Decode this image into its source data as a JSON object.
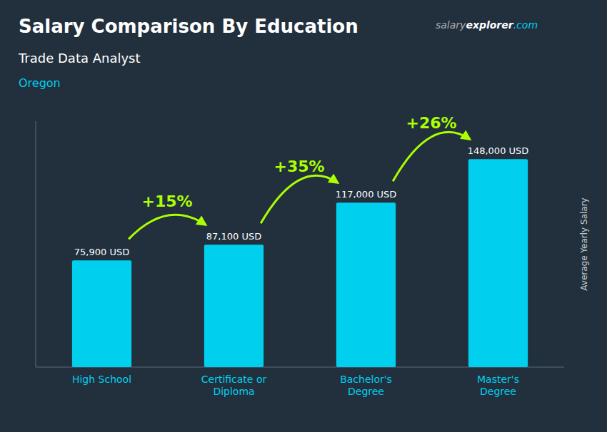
{
  "chart_data": {
    "type": "bar",
    "title": "Salary Comparison By Education",
    "subtitle": "Trade Data Analyst",
    "location": "Oregon",
    "brand": [
      "salary",
      "explorer",
      ".com"
    ],
    "ylabel": "Average Yearly Salary",
    "categories": [
      "High School",
      "Certificate or\nDiploma",
      "Bachelor's\nDegree",
      "Master's\nDegree"
    ],
    "values": [
      75900,
      87100,
      117000,
      148000
    ],
    "value_labels": [
      "75,900 USD",
      "87,100 USD",
      "117,000 USD",
      "148,000 USD"
    ],
    "data_labels": true,
    "color": "#00cfee",
    "annotations": [
      {
        "text": "+15%",
        "color": "#aaff00"
      },
      {
        "text": "+35%",
        "color": "#aaff00"
      },
      {
        "text": "+26%",
        "color": "#aaff00"
      }
    ],
    "ylim": [
      0,
      175000
    ],
    "tick_labels": "x",
    "grid": false
  }
}
